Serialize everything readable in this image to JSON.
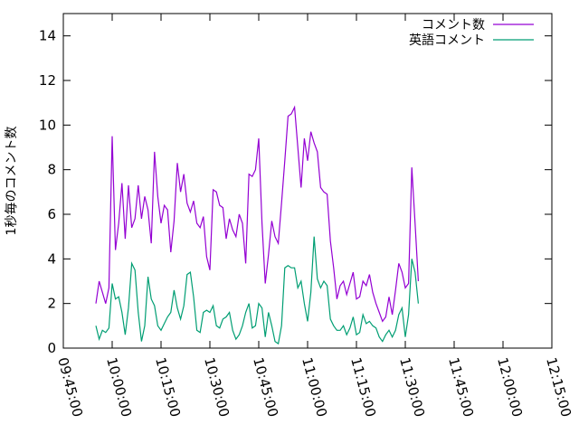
{
  "chart_data": {
    "type": "line",
    "title": "",
    "ylabel": "1秒毎のコメント数",
    "xlabel": "",
    "ylim": [
      0,
      15
    ],
    "xlim": [
      "09:45:00",
      "12:15:00"
    ],
    "grid": false,
    "legend_position": "top-right",
    "y_ticks": [
      "0",
      "2",
      "4",
      "6",
      "8",
      "10",
      "12",
      "14"
    ],
    "x_ticks": [
      "09:45:00",
      "10:00:00",
      "10:15:00",
      "10:30:00",
      "10:45:00",
      "11:00:00",
      "11:15:00",
      "11:30:00",
      "11:45:00",
      "12:00:00",
      "12:15:00"
    ],
    "series": [
      {
        "name": "コメント数",
        "color": "#9400d3",
        "points": [
          [
            "09:55:00",
            2.0
          ],
          [
            "09:56:00",
            3.0
          ],
          [
            "09:57:00",
            2.5
          ],
          [
            "09:58:00",
            2.0
          ],
          [
            "09:59:00",
            2.7
          ],
          [
            "10:00:00",
            9.5
          ],
          [
            "10:01:00",
            4.4
          ],
          [
            "10:02:00",
            5.6
          ],
          [
            "10:03:00",
            7.4
          ],
          [
            "10:04:00",
            4.9
          ],
          [
            "10:05:00",
            7.3
          ],
          [
            "10:06:00",
            5.4
          ],
          [
            "10:07:00",
            5.8
          ],
          [
            "10:08:00",
            7.3
          ],
          [
            "10:09:00",
            5.8
          ],
          [
            "10:10:00",
            6.8
          ],
          [
            "10:11:00",
            6.2
          ],
          [
            "10:12:00",
            4.7
          ],
          [
            "10:13:00",
            8.8
          ],
          [
            "10:14:00",
            6.8
          ],
          [
            "10:15:00",
            5.6
          ],
          [
            "10:16:00",
            6.4
          ],
          [
            "10:17:00",
            6.2
          ],
          [
            "10:18:00",
            4.3
          ],
          [
            "10:19:00",
            5.7
          ],
          [
            "10:20:00",
            8.3
          ],
          [
            "10:21:00",
            7.0
          ],
          [
            "10:22:00",
            7.8
          ],
          [
            "10:23:00",
            6.5
          ],
          [
            "10:24:00",
            6.1
          ],
          [
            "10:25:00",
            6.6
          ],
          [
            "10:26:00",
            5.6
          ],
          [
            "10:27:00",
            5.4
          ],
          [
            "10:28:00",
            5.9
          ],
          [
            "10:29:00",
            4.1
          ],
          [
            "10:30:00",
            3.5
          ],
          [
            "10:31:00",
            7.1
          ],
          [
            "10:32:00",
            7.0
          ],
          [
            "10:33:00",
            6.4
          ],
          [
            "10:34:00",
            6.3
          ],
          [
            "10:35:00",
            4.9
          ],
          [
            "10:36:00",
            5.8
          ],
          [
            "10:37:00",
            5.3
          ],
          [
            "10:38:00",
            5.0
          ],
          [
            "10:39:00",
            6.0
          ],
          [
            "10:40:00",
            5.6
          ],
          [
            "10:41:00",
            3.8
          ],
          [
            "10:42:00",
            7.8
          ],
          [
            "10:43:00",
            7.7
          ],
          [
            "10:44:00",
            8.0
          ],
          [
            "10:45:00",
            9.4
          ],
          [
            "10:46:00",
            5.6
          ],
          [
            "10:47:00",
            2.9
          ],
          [
            "10:48:00",
            4.2
          ],
          [
            "10:49:00",
            5.7
          ],
          [
            "10:50:00",
            5.0
          ],
          [
            "10:51:00",
            4.7
          ],
          [
            "10:52:00",
            6.5
          ],
          [
            "10:53:00",
            8.4
          ],
          [
            "10:54:00",
            10.4
          ],
          [
            "10:55:00",
            10.5
          ],
          [
            "10:56:00",
            10.8
          ],
          [
            "10:57:00",
            9.0
          ],
          [
            "10:58:00",
            7.2
          ],
          [
            "10:59:00",
            9.4
          ],
          [
            "11:00:00",
            8.4
          ],
          [
            "11:01:00",
            9.7
          ],
          [
            "11:02:00",
            9.2
          ],
          [
            "11:03:00",
            8.8
          ],
          [
            "11:04:00",
            7.2
          ],
          [
            "11:05:00",
            7.0
          ],
          [
            "11:06:00",
            6.9
          ],
          [
            "11:07:00",
            4.8
          ],
          [
            "11:08:00",
            3.6
          ],
          [
            "11:09:00",
            2.2
          ],
          [
            "11:10:00",
            2.8
          ],
          [
            "11:11:00",
            3.0
          ],
          [
            "11:12:00",
            2.4
          ],
          [
            "11:13:00",
            2.9
          ],
          [
            "11:14:00",
            3.4
          ],
          [
            "11:15:00",
            2.2
          ],
          [
            "11:16:00",
            2.3
          ],
          [
            "11:17:00",
            3.0
          ],
          [
            "11:18:00",
            2.8
          ],
          [
            "11:19:00",
            3.3
          ],
          [
            "11:20:00",
            2.5
          ],
          [
            "11:21:00",
            2.0
          ],
          [
            "11:22:00",
            1.6
          ],
          [
            "11:23:00",
            1.2
          ],
          [
            "11:24:00",
            1.4
          ],
          [
            "11:25:00",
            2.3
          ],
          [
            "11:26:00",
            1.5
          ],
          [
            "11:27:00",
            2.6
          ],
          [
            "11:28:00",
            3.8
          ],
          [
            "11:29:00",
            3.4
          ],
          [
            "11:30:00",
            2.7
          ],
          [
            "11:31:00",
            2.9
          ],
          [
            "11:32:00",
            8.1
          ],
          [
            "11:33:00",
            5.6
          ],
          [
            "11:34:00",
            3.0
          ]
        ]
      },
      {
        "name": "英語コメント",
        "color": "#009e73",
        "points": [
          [
            "09:55:00",
            1.0
          ],
          [
            "09:56:00",
            0.4
          ],
          [
            "09:57:00",
            0.8
          ],
          [
            "09:58:00",
            0.7
          ],
          [
            "09:59:00",
            0.9
          ],
          [
            "10:00:00",
            2.9
          ],
          [
            "10:01:00",
            2.2
          ],
          [
            "10:02:00",
            2.3
          ],
          [
            "10:03:00",
            1.6
          ],
          [
            "10:04:00",
            0.6
          ],
          [
            "10:05:00",
            1.8
          ],
          [
            "10:06:00",
            3.8
          ],
          [
            "10:07:00",
            3.5
          ],
          [
            "10:08:00",
            1.6
          ],
          [
            "10:09:00",
            0.3
          ],
          [
            "10:10:00",
            1.0
          ],
          [
            "10:11:00",
            3.2
          ],
          [
            "10:12:00",
            2.2
          ],
          [
            "10:13:00",
            1.9
          ],
          [
            "10:14:00",
            1.0
          ],
          [
            "10:15:00",
            0.8
          ],
          [
            "10:16:00",
            1.1
          ],
          [
            "10:17:00",
            1.4
          ],
          [
            "10:18:00",
            1.6
          ],
          [
            "10:19:00",
            2.6
          ],
          [
            "10:20:00",
            1.8
          ],
          [
            "10:21:00",
            1.3
          ],
          [
            "10:22:00",
            1.9
          ],
          [
            "10:23:00",
            3.3
          ],
          [
            "10:24:00",
            3.4
          ],
          [
            "10:25:00",
            2.3
          ],
          [
            "10:26:00",
            0.8
          ],
          [
            "10:27:00",
            0.7
          ],
          [
            "10:28:00",
            1.6
          ],
          [
            "10:29:00",
            1.7
          ],
          [
            "10:30:00",
            1.6
          ],
          [
            "10:31:00",
            1.9
          ],
          [
            "10:32:00",
            1.0
          ],
          [
            "10:33:00",
            0.9
          ],
          [
            "10:34:00",
            1.3
          ],
          [
            "10:35:00",
            1.4
          ],
          [
            "10:36:00",
            1.6
          ],
          [
            "10:37:00",
            0.8
          ],
          [
            "10:38:00",
            0.4
          ],
          [
            "10:39:00",
            0.6
          ],
          [
            "10:40:00",
            1.0
          ],
          [
            "10:41:00",
            1.6
          ],
          [
            "10:42:00",
            2.0
          ],
          [
            "10:43:00",
            0.9
          ],
          [
            "10:44:00",
            1.0
          ],
          [
            "10:45:00",
            2.0
          ],
          [
            "10:46:00",
            1.8
          ],
          [
            "10:47:00",
            0.5
          ],
          [
            "10:48:00",
            1.6
          ],
          [
            "10:49:00",
            1.0
          ],
          [
            "10:50:00",
            0.3
          ],
          [
            "10:51:00",
            0.2
          ],
          [
            "10:52:00",
            1.0
          ],
          [
            "10:53:00",
            3.6
          ],
          [
            "10:54:00",
            3.7
          ],
          [
            "10:55:00",
            3.6
          ],
          [
            "10:56:00",
            3.6
          ],
          [
            "10:57:00",
            2.7
          ],
          [
            "10:58:00",
            3.0
          ],
          [
            "10:59:00",
            2.0
          ],
          [
            "11:00:00",
            1.2
          ],
          [
            "11:01:00",
            2.5
          ],
          [
            "11:02:00",
            5.0
          ],
          [
            "11:03:00",
            3.1
          ],
          [
            "11:04:00",
            2.7
          ],
          [
            "11:05:00",
            3.0
          ],
          [
            "11:06:00",
            2.8
          ],
          [
            "11:07:00",
            1.3
          ],
          [
            "11:08:00",
            1.0
          ],
          [
            "11:09:00",
            0.8
          ],
          [
            "11:10:00",
            0.8
          ],
          [
            "11:11:00",
            1.0
          ],
          [
            "11:12:00",
            0.6
          ],
          [
            "11:13:00",
            0.9
          ],
          [
            "11:14:00",
            1.4
          ],
          [
            "11:15:00",
            0.6
          ],
          [
            "11:16:00",
            0.7
          ],
          [
            "11:17:00",
            1.5
          ],
          [
            "11:18:00",
            1.1
          ],
          [
            "11:19:00",
            1.2
          ],
          [
            "11:20:00",
            1.0
          ],
          [
            "11:21:00",
            0.9
          ],
          [
            "11:22:00",
            0.5
          ],
          [
            "11:23:00",
            0.3
          ],
          [
            "11:24:00",
            0.6
          ],
          [
            "11:25:00",
            0.8
          ],
          [
            "11:26:00",
            0.5
          ],
          [
            "11:27:00",
            0.8
          ],
          [
            "11:28:00",
            1.5
          ],
          [
            "11:29:00",
            1.8
          ],
          [
            "11:30:00",
            0.5
          ],
          [
            "11:31:00",
            1.5
          ],
          [
            "11:32:00",
            4.0
          ],
          [
            "11:33:00",
            3.4
          ],
          [
            "11:34:00",
            2.0
          ]
        ]
      }
    ]
  }
}
